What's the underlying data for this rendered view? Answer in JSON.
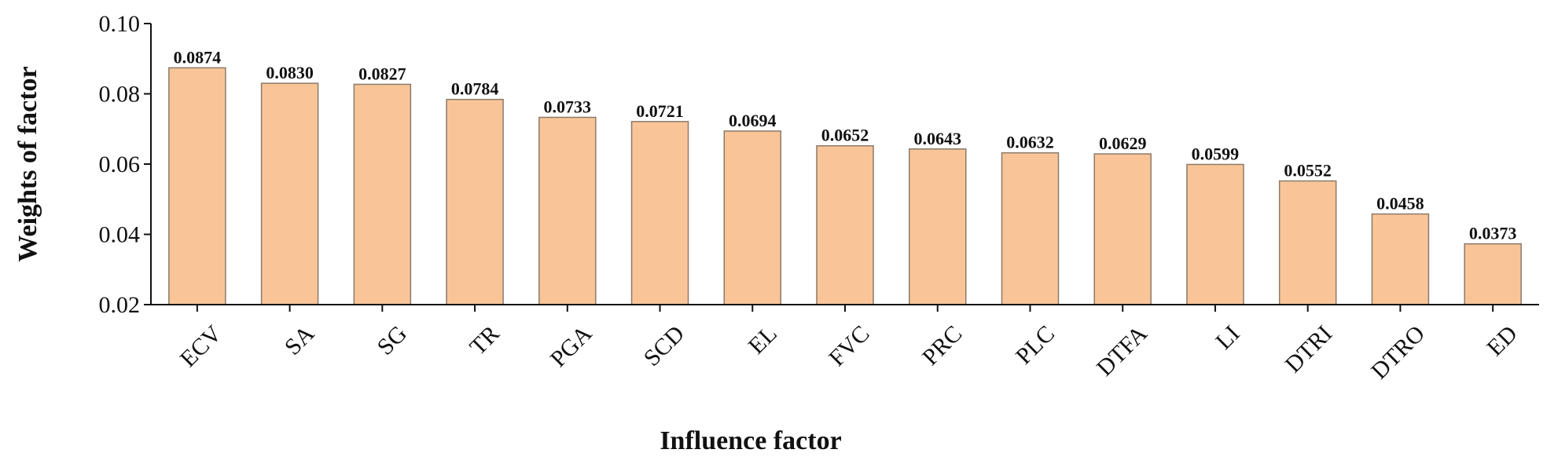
{
  "chart_data": {
    "type": "bar",
    "xlabel": "Influence factor",
    "ylabel": "Weights of factor",
    "ylim": [
      0.02,
      0.1
    ],
    "yticks": [
      "0.02",
      "0.04",
      "0.06",
      "0.08",
      "0.10"
    ],
    "categories": [
      "ECV",
      "SA",
      "SG",
      "TR",
      "PGA",
      "SCD",
      "EL",
      "FVC",
      "PRC",
      "PLC",
      "DTFA",
      "LI",
      "DTRI",
      "DTRO",
      "ED"
    ],
    "values": [
      0.0874,
      0.083,
      0.0827,
      0.0784,
      0.0733,
      0.0721,
      0.0694,
      0.0652,
      0.0643,
      0.0632,
      0.0629,
      0.0599,
      0.0552,
      0.0458,
      0.0373
    ],
    "value_labels": [
      "0.0874",
      "0.0830",
      "0.0827",
      "0.0784",
      "0.0733",
      "0.0721",
      "0.0694",
      "0.0652",
      "0.0643",
      "0.0632",
      "0.0629",
      "0.0599",
      "0.0552",
      "0.0458",
      "0.0373"
    ],
    "bar_color": "#F9C598",
    "bar_edge_color": "#8a7a6a",
    "grid": false,
    "legend": "none"
  }
}
